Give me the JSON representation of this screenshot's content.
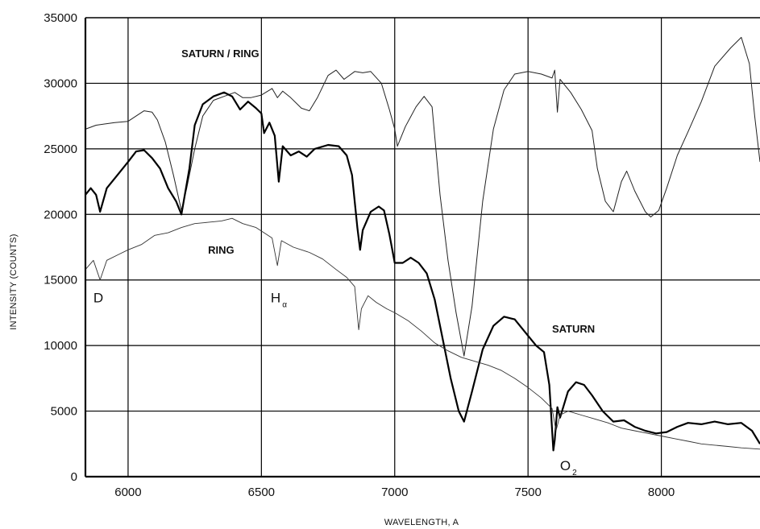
{
  "chart_data": {
    "type": "line",
    "xlabel": "WAVELENGTH, A",
    "ylabel": "INTENSITY (COUNTS)",
    "xlim": [
      5840,
      8370
    ],
    "ylim": [
      0,
      35000
    ],
    "x_ticks": [
      6000,
      6500,
      7000,
      7500,
      8000
    ],
    "y_ticks": [
      0,
      5000,
      10000,
      15000,
      20000,
      25000,
      30000,
      35000
    ],
    "grid": true,
    "annotations": [
      {
        "text": "SATURN / RING",
        "x": 6200,
        "y": 32000,
        "style": "bold"
      },
      {
        "text": "RING",
        "x": 6300,
        "y": 17000,
        "style": "bold"
      },
      {
        "text": "SATURN",
        "x": 7590,
        "y": 11000,
        "style": "bold"
      },
      {
        "text": "D",
        "x": 5870,
        "y": 13300,
        "style": "plain"
      },
      {
        "text": "H",
        "sub": "α",
        "x": 6535,
        "y": 13300,
        "style": "plain"
      },
      {
        "text": "O",
        "sub": "2",
        "x": 7620,
        "y": 500,
        "style": "plain"
      }
    ],
    "series": [
      {
        "stroke": "#222222",
        "width": 1.0,
        "points": [
          [
            5840,
            26500
          ],
          [
            5880,
            26800
          ],
          [
            5950,
            27000
          ],
          [
            6000,
            27100
          ],
          [
            6030,
            27500
          ],
          [
            6060,
            27900
          ],
          [
            6090,
            27800
          ],
          [
            6110,
            27200
          ],
          [
            6140,
            25500
          ],
          [
            6170,
            23000
          ],
          [
            6200,
            20300
          ],
          [
            6220,
            22000
          ],
          [
            6250,
            25000
          ],
          [
            6280,
            27500
          ],
          [
            6320,
            28700
          ],
          [
            6360,
            29000
          ],
          [
            6400,
            29300
          ],
          [
            6430,
            28900
          ],
          [
            6460,
            28900
          ],
          [
            6500,
            29100
          ],
          [
            6540,
            29600
          ],
          [
            6560,
            28900
          ],
          [
            6580,
            29400
          ],
          [
            6610,
            28900
          ],
          [
            6650,
            28100
          ],
          [
            6680,
            27900
          ],
          [
            6710,
            28900
          ],
          [
            6750,
            30600
          ],
          [
            6780,
            31000
          ],
          [
            6810,
            30300
          ],
          [
            6850,
            30900
          ],
          [
            6880,
            30800
          ],
          [
            6910,
            30900
          ],
          [
            6950,
            30000
          ],
          [
            6980,
            28000
          ],
          [
            7000,
            26500
          ],
          [
            7010,
            25200
          ],
          [
            7040,
            26700
          ],
          [
            7080,
            28200
          ],
          [
            7110,
            29000
          ],
          [
            7140,
            28200
          ],
          [
            7170,
            21500
          ],
          [
            7200,
            16500
          ],
          [
            7230,
            12500
          ],
          [
            7260,
            9200
          ],
          [
            7290,
            13000
          ],
          [
            7330,
            21000
          ],
          [
            7370,
            26500
          ],
          [
            7410,
            29500
          ],
          [
            7450,
            30700
          ],
          [
            7500,
            30900
          ],
          [
            7550,
            30700
          ],
          [
            7590,
            30400
          ],
          [
            7600,
            31000
          ],
          [
            7610,
            27800
          ],
          [
            7620,
            30300
          ],
          [
            7660,
            29300
          ],
          [
            7700,
            28000
          ],
          [
            7740,
            26400
          ],
          [
            7760,
            23500
          ],
          [
            7790,
            21000
          ],
          [
            7820,
            20200
          ],
          [
            7850,
            22500
          ],
          [
            7870,
            23300
          ],
          [
            7900,
            21800
          ],
          [
            7940,
            20200
          ],
          [
            7960,
            19800
          ],
          [
            7990,
            20300
          ],
          [
            8020,
            22000
          ],
          [
            8060,
            24500
          ],
          [
            8100,
            26300
          ],
          [
            8150,
            28600
          ],
          [
            8200,
            31300
          ],
          [
            8260,
            32700
          ],
          [
            8300,
            33500
          ],
          [
            8330,
            31500
          ],
          [
            8350,
            27500
          ],
          [
            8370,
            24000
          ]
        ]
      },
      {
        "stroke": "#000000",
        "width": 2.2,
        "points": [
          [
            5840,
            21500
          ],
          [
            5860,
            22000
          ],
          [
            5880,
            21500
          ],
          [
            5895,
            20200
          ],
          [
            5920,
            22000
          ],
          [
            5960,
            23000
          ],
          [
            6000,
            24000
          ],
          [
            6030,
            24800
          ],
          [
            6060,
            24900
          ],
          [
            6090,
            24300
          ],
          [
            6120,
            23500
          ],
          [
            6150,
            22000
          ],
          [
            6180,
            21000
          ],
          [
            6200,
            20000
          ],
          [
            6230,
            23500
          ],
          [
            6250,
            26800
          ],
          [
            6280,
            28400
          ],
          [
            6320,
            29000
          ],
          [
            6360,
            29300
          ],
          [
            6390,
            29000
          ],
          [
            6420,
            28000
          ],
          [
            6450,
            28600
          ],
          [
            6480,
            28100
          ],
          [
            6500,
            27700
          ],
          [
            6510,
            26200
          ],
          [
            6530,
            27000
          ],
          [
            6550,
            26000
          ],
          [
            6565,
            22500
          ],
          [
            6580,
            25200
          ],
          [
            6610,
            24500
          ],
          [
            6640,
            24800
          ],
          [
            6670,
            24400
          ],
          [
            6700,
            25000
          ],
          [
            6750,
            25300
          ],
          [
            6790,
            25200
          ],
          [
            6820,
            24500
          ],
          [
            6840,
            23000
          ],
          [
            6860,
            19000
          ],
          [
            6870,
            17300
          ],
          [
            6880,
            18800
          ],
          [
            6910,
            20200
          ],
          [
            6940,
            20600
          ],
          [
            6960,
            20300
          ],
          [
            6980,
            18500
          ],
          [
            7000,
            16300
          ],
          [
            7030,
            16300
          ],
          [
            7060,
            16700
          ],
          [
            7090,
            16300
          ],
          [
            7120,
            15500
          ],
          [
            7150,
            13500
          ],
          [
            7180,
            10500
          ],
          [
            7210,
            7500
          ],
          [
            7240,
            5000
          ],
          [
            7260,
            4200
          ],
          [
            7290,
            6500
          ],
          [
            7330,
            9700
          ],
          [
            7370,
            11500
          ],
          [
            7410,
            12200
          ],
          [
            7450,
            12000
          ],
          [
            7490,
            11000
          ],
          [
            7530,
            10000
          ],
          [
            7560,
            9500
          ],
          [
            7580,
            7000
          ],
          [
            7595,
            2000
          ],
          [
            7600,
            2800
          ],
          [
            7610,
            5300
          ],
          [
            7620,
            4500
          ],
          [
            7650,
            6500
          ],
          [
            7680,
            7200
          ],
          [
            7710,
            7000
          ],
          [
            7740,
            6200
          ],
          [
            7780,
            5000
          ],
          [
            7820,
            4200
          ],
          [
            7860,
            4300
          ],
          [
            7900,
            3800
          ],
          [
            7940,
            3500
          ],
          [
            7980,
            3300
          ],
          [
            8020,
            3400
          ],
          [
            8060,
            3800
          ],
          [
            8100,
            4100
          ],
          [
            8150,
            4000
          ],
          [
            8200,
            4200
          ],
          [
            8250,
            4000
          ],
          [
            8300,
            4100
          ],
          [
            8340,
            3500
          ],
          [
            8370,
            2500
          ]
        ]
      },
      {
        "stroke": "#333333",
        "width": 0.9,
        "points": [
          [
            5840,
            15800
          ],
          [
            5870,
            16500
          ],
          [
            5895,
            15000
          ],
          [
            5920,
            16500
          ],
          [
            5970,
            17000
          ],
          [
            6000,
            17300
          ],
          [
            6050,
            17700
          ],
          [
            6100,
            18400
          ],
          [
            6150,
            18600
          ],
          [
            6200,
            19000
          ],
          [
            6250,
            19300
          ],
          [
            6300,
            19400
          ],
          [
            6350,
            19500
          ],
          [
            6390,
            19700
          ],
          [
            6430,
            19300
          ],
          [
            6480,
            19000
          ],
          [
            6510,
            18600
          ],
          [
            6540,
            18200
          ],
          [
            6560,
            16100
          ],
          [
            6575,
            18000
          ],
          [
            6620,
            17500
          ],
          [
            6680,
            17100
          ],
          [
            6730,
            16600
          ],
          [
            6780,
            15800
          ],
          [
            6820,
            15200
          ],
          [
            6850,
            14500
          ],
          [
            6865,
            11200
          ],
          [
            6875,
            12800
          ],
          [
            6900,
            13800
          ],
          [
            6930,
            13300
          ],
          [
            6970,
            12800
          ],
          [
            7000,
            12500
          ],
          [
            7050,
            11900
          ],
          [
            7100,
            11100
          ],
          [
            7150,
            10200
          ],
          [
            7200,
            9600
          ],
          [
            7250,
            9100
          ],
          [
            7300,
            8800
          ],
          [
            7350,
            8500
          ],
          [
            7400,
            8100
          ],
          [
            7450,
            7500
          ],
          [
            7500,
            6800
          ],
          [
            7550,
            6000
          ],
          [
            7590,
            5200
          ],
          [
            7605,
            3500
          ],
          [
            7620,
            4700
          ],
          [
            7650,
            5000
          ],
          [
            7700,
            4700
          ],
          [
            7750,
            4400
          ],
          [
            7800,
            4100
          ],
          [
            7850,
            3700
          ],
          [
            7900,
            3500
          ],
          [
            7950,
            3300
          ],
          [
            8000,
            3100
          ],
          [
            8050,
            2900
          ],
          [
            8100,
            2700
          ],
          [
            8150,
            2500
          ],
          [
            8200,
            2400
          ],
          [
            8250,
            2300
          ],
          [
            8300,
            2200
          ],
          [
            8370,
            2100
          ]
        ]
      }
    ]
  }
}
